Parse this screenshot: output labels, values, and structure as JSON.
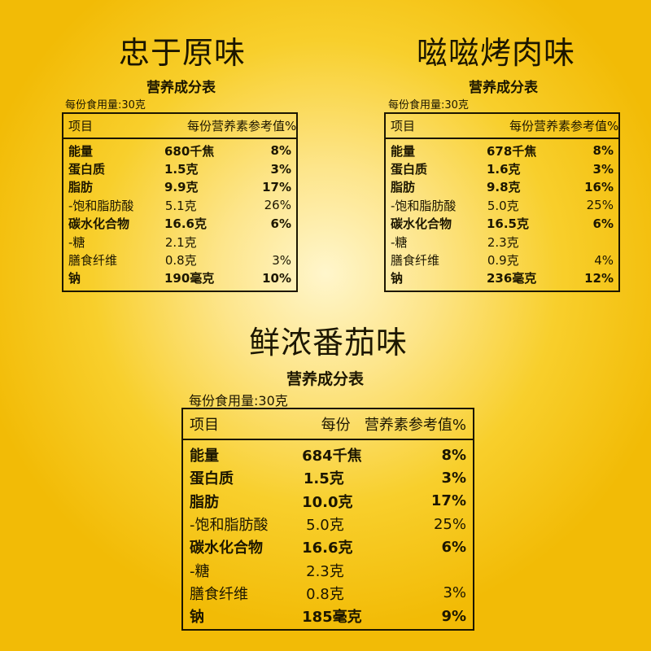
{
  "headers": [
    "项目",
    "每份",
    "营养素参考值%"
  ],
  "nutrition_title": "营养成分表",
  "serving_label": "每份食用量:30克",
  "products": [
    {
      "flavor": "忠于原味",
      "rows": [
        {
          "name": "能量",
          "amount": "680千焦",
          "nrv": "8%",
          "bold": true
        },
        {
          "name": "蛋白质",
          "amount": "1.5克",
          "nrv": "3%",
          "bold": true
        },
        {
          "name": "脂肪",
          "amount": "9.9克",
          "nrv": "17%",
          "bold": true
        },
        {
          "name": "-饱和脂肪酸",
          "amount": "5.1克",
          "nrv": "26%",
          "bold": false
        },
        {
          "name": "碳水化合物",
          "amount": "16.6克",
          "nrv": "6%",
          "bold": true
        },
        {
          "name": "-糖",
          "amount": "2.1克",
          "nrv": "",
          "bold": false
        },
        {
          "name": "膳食纤维",
          "amount": "0.8克",
          "nrv": "3%",
          "bold": false
        },
        {
          "name": "钠",
          "amount": "190毫克",
          "nrv": "10%",
          "bold": true
        }
      ]
    },
    {
      "flavor": "嗞嗞烤肉味",
      "rows": [
        {
          "name": "能量",
          "amount": "678千焦",
          "nrv": "8%",
          "bold": true
        },
        {
          "name": "蛋白质",
          "amount": "1.6克",
          "nrv": "3%",
          "bold": true
        },
        {
          "name": "脂肪",
          "amount": "9.8克",
          "nrv": "16%",
          "bold": true
        },
        {
          "name": "-饱和脂肪酸",
          "amount": "5.0克",
          "nrv": "25%",
          "bold": false
        },
        {
          "name": "碳水化合物",
          "amount": "16.5克",
          "nrv": "6%",
          "bold": true
        },
        {
          "name": "-糖",
          "amount": "2.3克",
          "nrv": "",
          "bold": false
        },
        {
          "name": "膳食纤维",
          "amount": "0.9克",
          "nrv": "4%",
          "bold": false
        },
        {
          "name": "钠",
          "amount": "236毫克",
          "nrv": "12%",
          "bold": true
        }
      ]
    },
    {
      "flavor": "鲜浓番茄味",
      "rows": [
        {
          "name": "能量",
          "amount": "684千焦",
          "nrv": "8%",
          "bold": true
        },
        {
          "name": "蛋白质",
          "amount": "1.5克",
          "nrv": "3%",
          "bold": true
        },
        {
          "name": "脂肪",
          "amount": "10.0克",
          "nrv": "17%",
          "bold": true
        },
        {
          "name": "-饱和脂肪酸",
          "amount": "5.0克",
          "nrv": "25%",
          "bold": false
        },
        {
          "name": "碳水化合物",
          "amount": "16.6克",
          "nrv": "6%",
          "bold": true
        },
        {
          "name": "-糖",
          "amount": "2.3克",
          "nrv": "",
          "bold": false
        },
        {
          "name": "膳食纤维",
          "amount": "0.8克",
          "nrv": "3%",
          "bold": false
        },
        {
          "name": "钠",
          "amount": "185毫克",
          "nrv": "9%",
          "bold": true
        }
      ]
    }
  ]
}
